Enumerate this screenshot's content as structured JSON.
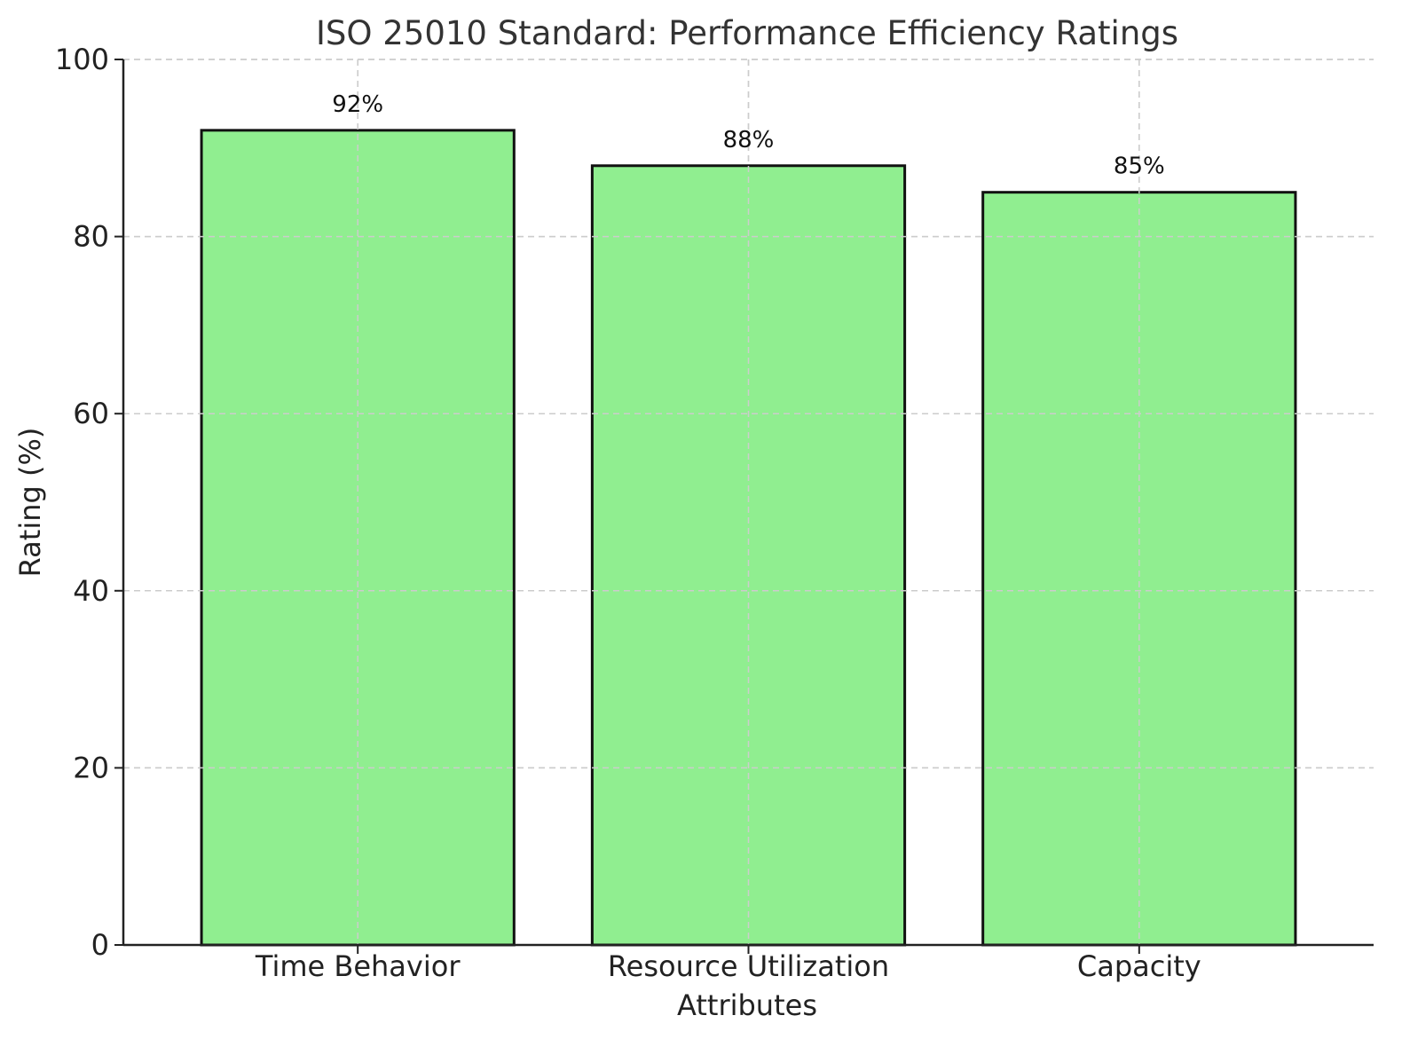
{
  "chart_data": {
    "type": "bar",
    "title": "ISO 25010 Standard: Performance Efficiency Ratings",
    "xlabel": "Attributes",
    "ylabel": "Rating (%)",
    "categories": [
      "Time Behavior",
      "Resource Utilization",
      "Capacity"
    ],
    "values": [
      92,
      88,
      85
    ],
    "value_labels": [
      "92%",
      "88%",
      "85%"
    ],
    "ylim": [
      0,
      100
    ],
    "yticks": [
      0,
      20,
      40,
      60,
      80,
      100
    ],
    "grid": true,
    "bar_color": "#90ee90",
    "edge_color": "#111111"
  }
}
